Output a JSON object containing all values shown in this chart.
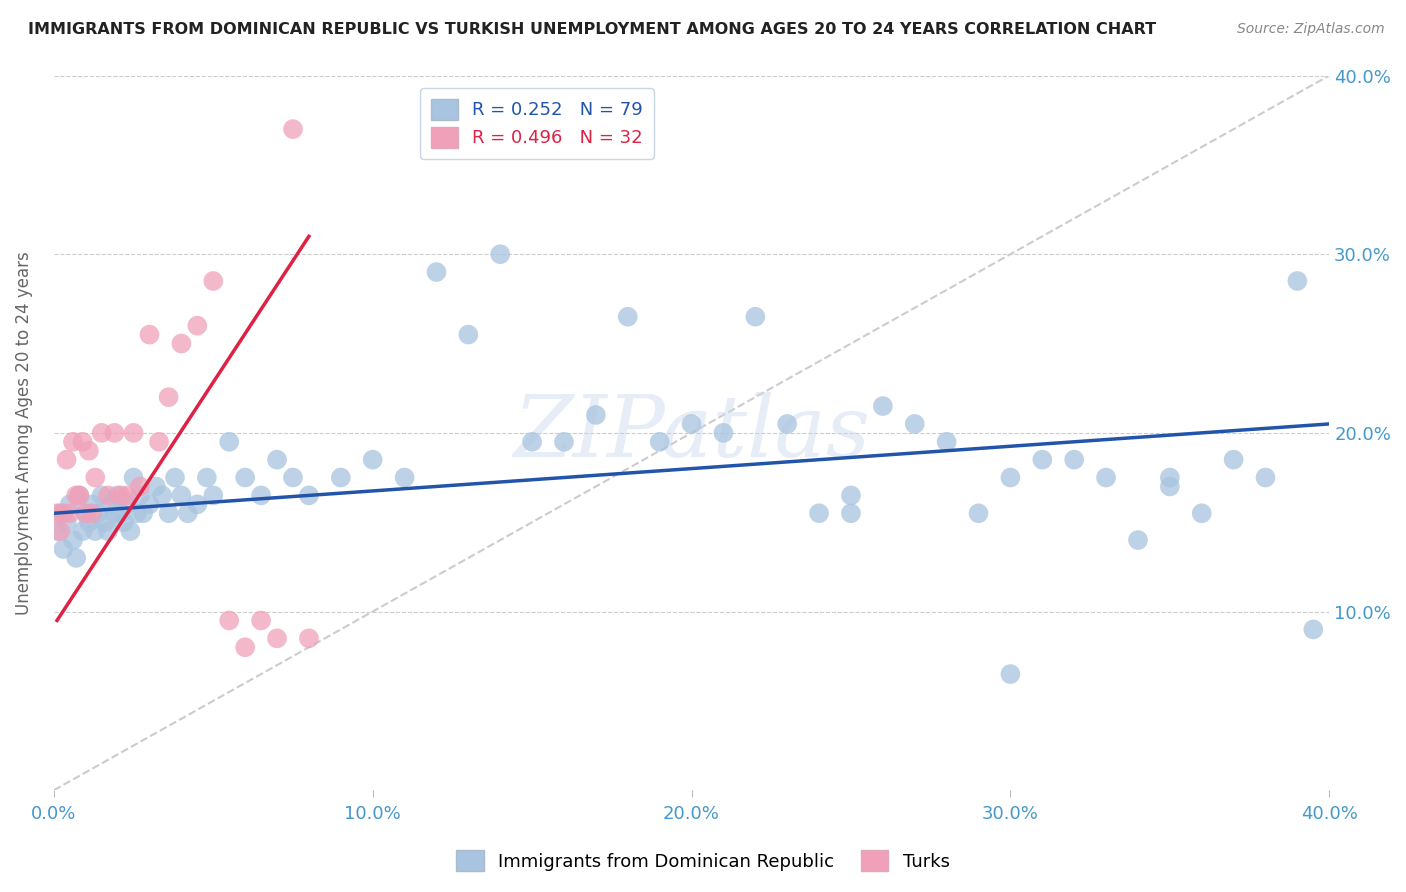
{
  "title": "IMMIGRANTS FROM DOMINICAN REPUBLIC VS TURKISH UNEMPLOYMENT AMONG AGES 20 TO 24 YEARS CORRELATION CHART",
  "source": "Source: ZipAtlas.com",
  "ylabel": "Unemployment Among Ages 20 to 24 years",
  "xlim": [
    0.0,
    0.4
  ],
  "ylim": [
    0.0,
    0.4
  ],
  "xticks": [
    0.0,
    0.1,
    0.2,
    0.3,
    0.4
  ],
  "yticks": [
    0.1,
    0.2,
    0.3,
    0.4
  ],
  "xticklabels": [
    "0.0%",
    "10.0%",
    "20.0%",
    "30.0%",
    "40.0%"
  ],
  "right_yticklabels": [
    "10.0%",
    "20.0%",
    "30.0%",
    "40.0%"
  ],
  "right_yticks": [
    0.1,
    0.2,
    0.3,
    0.4
  ],
  "blue_R": 0.252,
  "blue_N": 79,
  "pink_R": 0.496,
  "pink_N": 32,
  "blue_color": "#a8c4e0",
  "pink_color": "#f0a0b8",
  "blue_line_color": "#2255aa",
  "pink_line_color": "#dd2244",
  "diagonal_color": "#cccccc",
  "grid_color": "#cccccc",
  "axis_color": "#4499cc",
  "watermark": "ZIPatlas",
  "blue_scatter_x": [
    0.001,
    0.002,
    0.003,
    0.004,
    0.005,
    0.006,
    0.007,
    0.008,
    0.009,
    0.01,
    0.011,
    0.012,
    0.013,
    0.014,
    0.015,
    0.016,
    0.017,
    0.018,
    0.019,
    0.02,
    0.021,
    0.022,
    0.023,
    0.024,
    0.025,
    0.026,
    0.027,
    0.028,
    0.03,
    0.032,
    0.034,
    0.036,
    0.038,
    0.04,
    0.042,
    0.045,
    0.048,
    0.05,
    0.055,
    0.06,
    0.065,
    0.07,
    0.075,
    0.08,
    0.09,
    0.1,
    0.11,
    0.12,
    0.13,
    0.14,
    0.15,
    0.16,
    0.17,
    0.18,
    0.19,
    0.2,
    0.21,
    0.22,
    0.23,
    0.24,
    0.25,
    0.26,
    0.27,
    0.28,
    0.29,
    0.3,
    0.31,
    0.32,
    0.33,
    0.34,
    0.35,
    0.36,
    0.37,
    0.38,
    0.39,
    0.395,
    0.25,
    0.3,
    0.35
  ],
  "blue_scatter_y": [
    0.145,
    0.155,
    0.135,
    0.15,
    0.16,
    0.14,
    0.13,
    0.165,
    0.145,
    0.155,
    0.15,
    0.16,
    0.145,
    0.155,
    0.165,
    0.15,
    0.145,
    0.16,
    0.155,
    0.165,
    0.155,
    0.15,
    0.16,
    0.145,
    0.175,
    0.155,
    0.165,
    0.155,
    0.16,
    0.17,
    0.165,
    0.155,
    0.175,
    0.165,
    0.155,
    0.16,
    0.175,
    0.165,
    0.195,
    0.175,
    0.165,
    0.185,
    0.175,
    0.165,
    0.175,
    0.185,
    0.175,
    0.29,
    0.255,
    0.3,
    0.195,
    0.195,
    0.21,
    0.265,
    0.195,
    0.205,
    0.2,
    0.265,
    0.205,
    0.155,
    0.165,
    0.215,
    0.205,
    0.195,
    0.155,
    0.175,
    0.185,
    0.185,
    0.175,
    0.14,
    0.17,
    0.155,
    0.185,
    0.175,
    0.285,
    0.09,
    0.155,
    0.065,
    0.175
  ],
  "pink_scatter_x": [
    0.001,
    0.002,
    0.003,
    0.004,
    0.005,
    0.006,
    0.007,
    0.008,
    0.009,
    0.01,
    0.011,
    0.012,
    0.013,
    0.015,
    0.017,
    0.019,
    0.021,
    0.023,
    0.025,
    0.027,
    0.03,
    0.033,
    0.036,
    0.04,
    0.045,
    0.05,
    0.055,
    0.06,
    0.065,
    0.07,
    0.075,
    0.08
  ],
  "pink_scatter_y": [
    0.155,
    0.145,
    0.155,
    0.185,
    0.155,
    0.195,
    0.165,
    0.165,
    0.195,
    0.155,
    0.19,
    0.155,
    0.175,
    0.2,
    0.165,
    0.2,
    0.165,
    0.165,
    0.2,
    0.17,
    0.255,
    0.195,
    0.22,
    0.25,
    0.26,
    0.285,
    0.095,
    0.08,
    0.095,
    0.085,
    0.37,
    0.085
  ],
  "blue_line_x": [
    0.0,
    0.4
  ],
  "blue_line_y": [
    0.155,
    0.205
  ],
  "pink_line_x": [
    0.001,
    0.08
  ],
  "pink_line_y": [
    0.095,
    0.31
  ]
}
